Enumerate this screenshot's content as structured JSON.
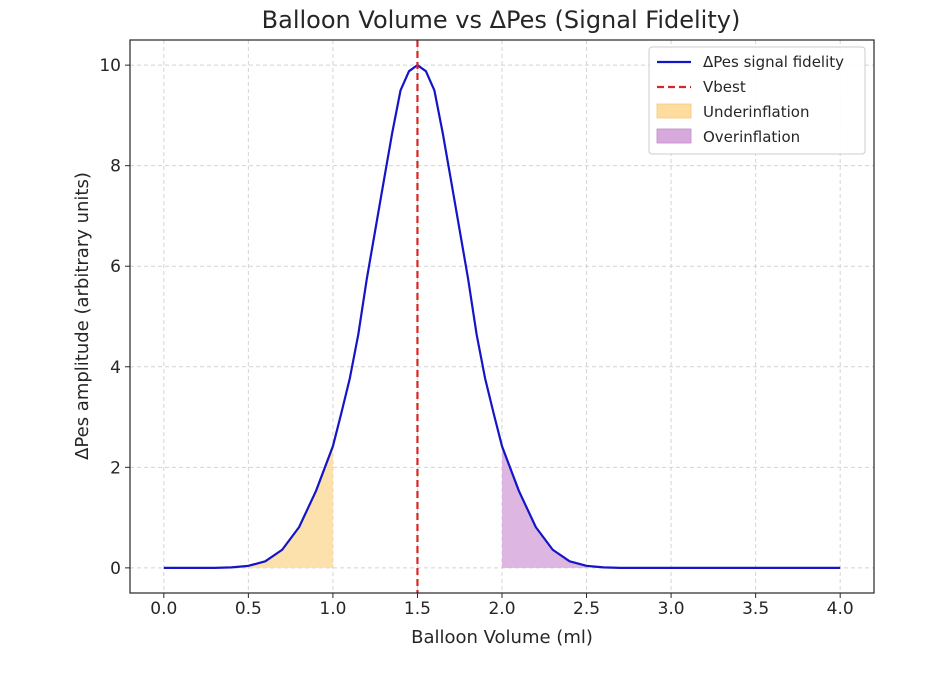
{
  "chart_data": {
    "type": "line",
    "title": "Balloon Volume vs ΔPes (Signal Fidelity)",
    "xlabel": "Balloon Volume (ml)",
    "ylabel": "ΔPes amplitude (arbitrary units)",
    "xlim": [
      -0.2,
      4.2
    ],
    "ylim": [
      -0.5,
      10.5
    ],
    "x_ticks": [
      0.0,
      0.5,
      1.0,
      1.5,
      2.0,
      2.5,
      3.0,
      3.5,
      4.0
    ],
    "x_tick_labels": [
      "0.0",
      "0.5",
      "1.0",
      "1.5",
      "2.0",
      "2.5",
      "3.0",
      "3.5",
      "4.0"
    ],
    "y_ticks": [
      0,
      2,
      4,
      6,
      8,
      10
    ],
    "y_tick_labels": [
      "0",
      "2",
      "4",
      "6",
      "8",
      "10"
    ],
    "grid": true,
    "series": [
      {
        "name": "ΔPes signal fidelity",
        "color": "#1515c8",
        "style": "solid",
        "x": [
          0.0,
          0.1,
          0.2,
          0.3,
          0.4,
          0.5,
          0.6,
          0.7,
          0.8,
          0.9,
          1.0,
          1.05,
          1.1,
          1.15,
          1.2,
          1.25,
          1.3,
          1.35,
          1.4,
          1.45,
          1.5,
          1.55,
          1.6,
          1.65,
          1.7,
          1.75,
          1.8,
          1.85,
          1.9,
          1.95,
          2.0,
          2.1,
          2.2,
          2.3,
          2.4,
          2.5,
          2.6,
          2.7,
          2.8,
          2.9,
          3.0,
          3.5,
          4.0
        ],
        "values": [
          0.0,
          0.0,
          0.0,
          0.0,
          0.01,
          0.04,
          0.13,
          0.36,
          0.81,
          1.53,
          2.42,
          3.08,
          3.77,
          4.64,
          5.74,
          6.71,
          7.68,
          8.64,
          9.5,
          9.88,
          10.0,
          9.88,
          9.5,
          8.64,
          7.68,
          6.71,
          5.74,
          4.64,
          3.77,
          3.08,
          2.42,
          1.53,
          0.81,
          0.36,
          0.13,
          0.04,
          0.01,
          0.0,
          0.0,
          0.0,
          0.0,
          0.0,
          0.0
        ]
      },
      {
        "name": "Vbest",
        "color": "#d62728",
        "style": "dashed",
        "vline_x": 1.5
      }
    ],
    "shaded_regions": [
      {
        "name": "Underinflation",
        "x_range": [
          0.5,
          1.0
        ],
        "color": "#fddc9e"
      },
      {
        "name": "Overinflation",
        "x_range": [
          2.0,
          2.5
        ],
        "color": "#d7a9dc"
      }
    ],
    "legend": {
      "position": "top-right",
      "entries": [
        "ΔPes signal fidelity",
        "Vbest",
        "Underinflation",
        "Overinflation"
      ]
    }
  }
}
